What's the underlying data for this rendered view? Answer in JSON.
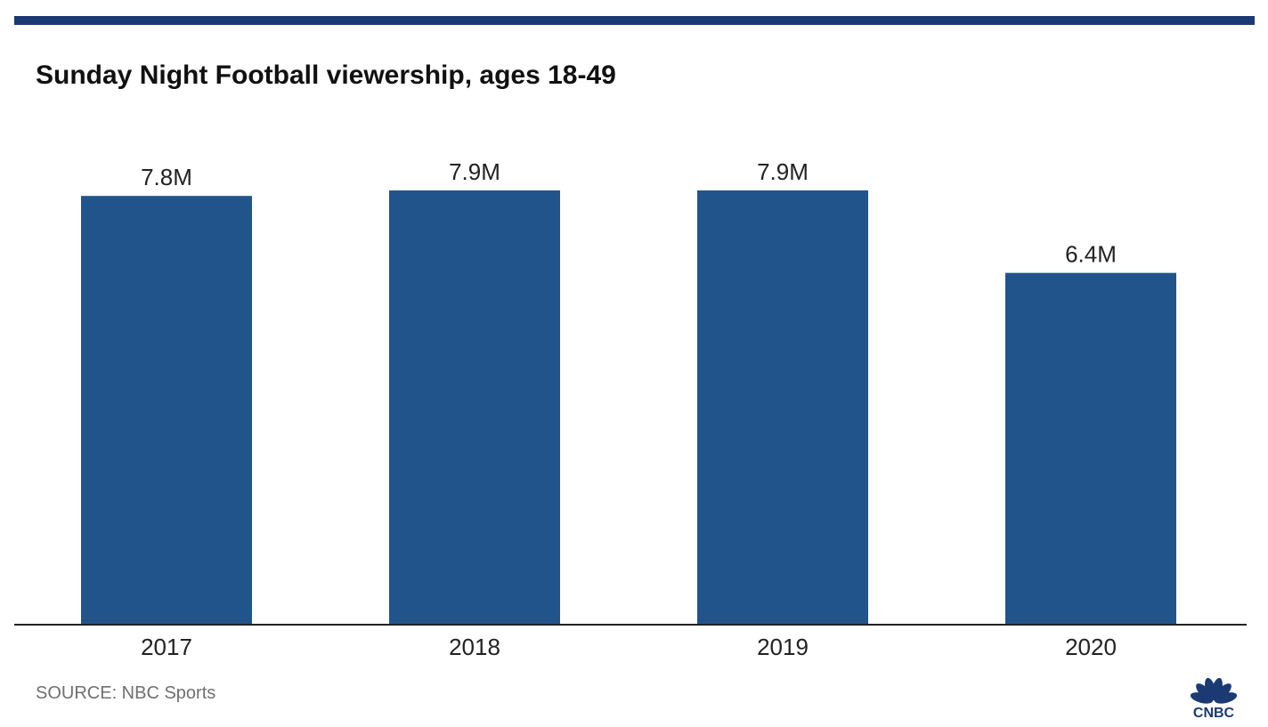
{
  "colors": {
    "bar": "#22548c",
    "top_rule": "#1b3a73",
    "axis": "#222222",
    "logo": "#1b3a73"
  },
  "source": "SOURCE: NBC Sports",
  "logo_text": "CNBC",
  "chart_data": {
    "type": "bar",
    "title": "Sunday Night Football viewership, ages 18-49",
    "xlabel": "",
    "ylabel": "",
    "categories": [
      "2017",
      "2018",
      "2019",
      "2020"
    ],
    "values": [
      7.8,
      7.9,
      7.9,
      6.4
    ],
    "value_labels": [
      "7.8M",
      "7.9M",
      "7.9M",
      "6.4M"
    ],
    "units": "millions of viewers",
    "ylim": [
      0,
      7.9
    ],
    "grid": false,
    "legend": "none"
  }
}
